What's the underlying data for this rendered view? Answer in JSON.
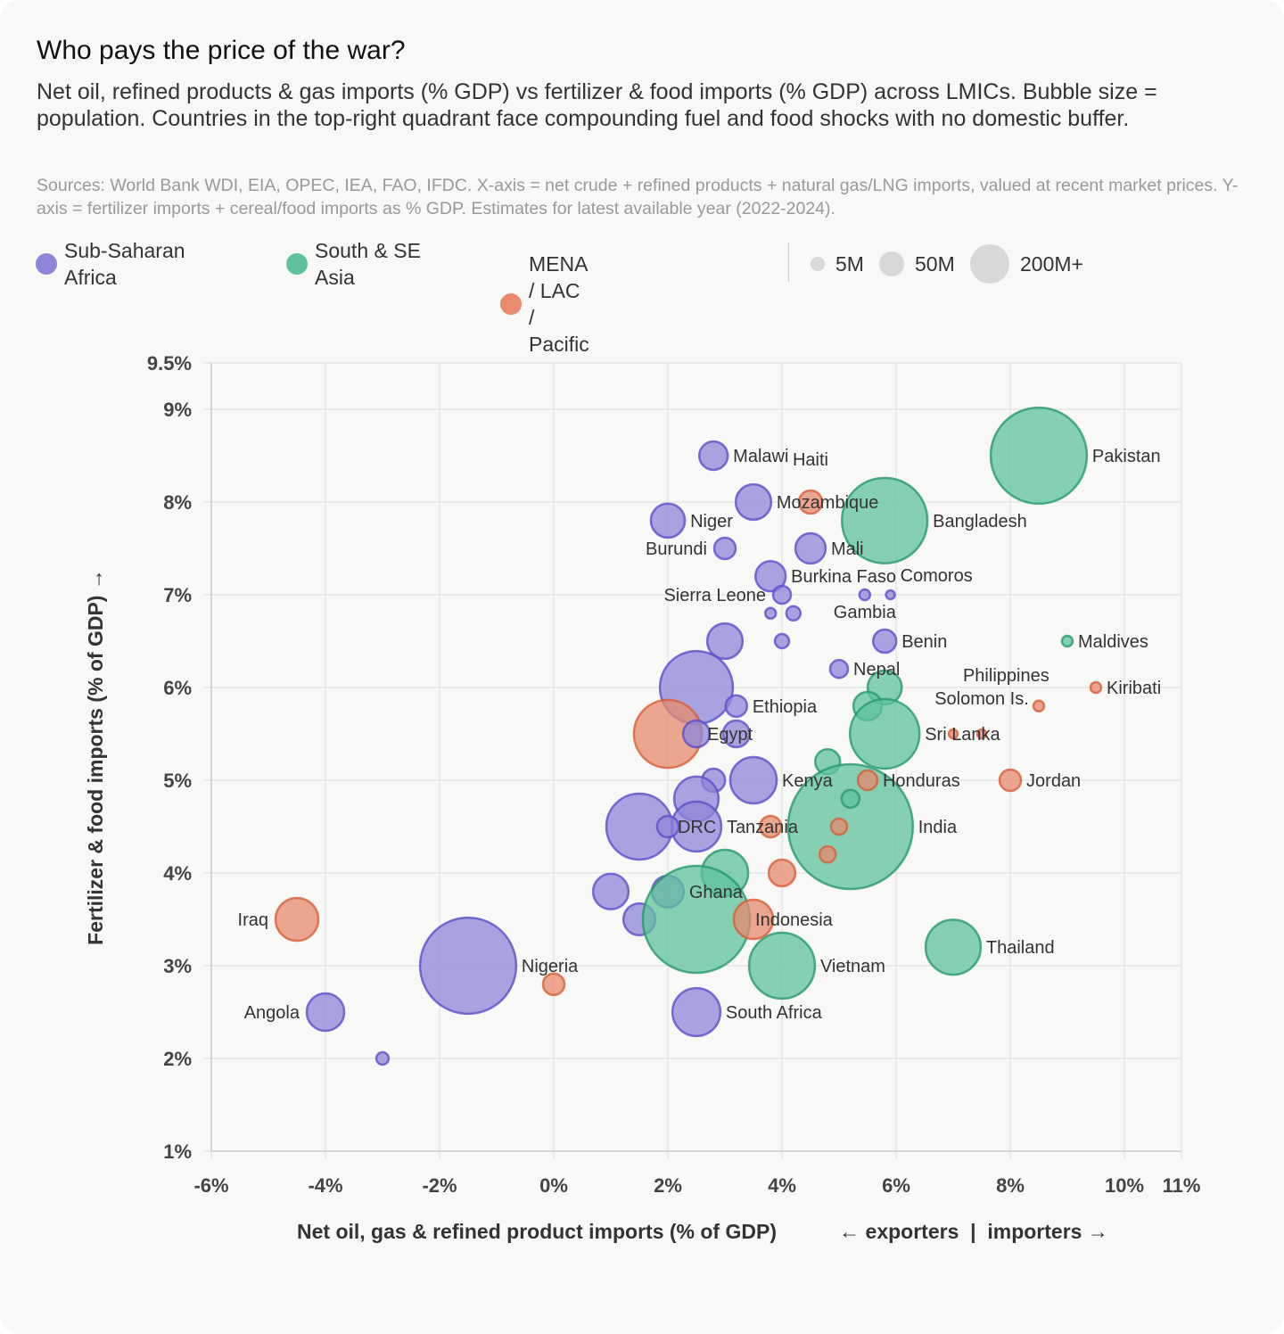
{
  "header": {
    "title": "Who pays the price of the war?",
    "subtitle": "Net oil, refined products & gas imports (% GDP) vs fertilizer & food imports (% GDP) across LMICs. Bubble size = population. Countries in the top-right quadrant face compounding fuel and food shocks with no domestic buffer.",
    "sources": "Sources: World Bank WDI, EIA, OPEC, IEA, FAO, IFDC. X-axis = net crude + refined products + natural gas/LNG imports, valued at recent market prices. Y-axis = fertilizer imports + cereal/food imports as % GDP. Estimates for latest available year (2022-2024)."
  },
  "legend": {
    "regions": [
      {
        "label": "Sub-Saharan Africa",
        "key": "ssa"
      },
      {
        "label": "South & SE Asia",
        "key": "asia"
      },
      {
        "label": "MENA / LAC / Pacific",
        "key": "mena"
      }
    ],
    "sizes": [
      {
        "label": "5M",
        "pop_m": 5
      },
      {
        "label": "50M",
        "pop_m": 50
      },
      {
        "label": "200M+",
        "pop_m": 200
      }
    ]
  },
  "colors": {
    "ssa": {
      "fill": "#8d86d8",
      "stroke": "#5a4fc8"
    },
    "asia": {
      "fill": "#5fc29b",
      "stroke": "#27996a"
    },
    "mena": {
      "fill": "#e88a6c",
      "stroke": "#d65f3a"
    },
    "grid": "#e6e6e6"
  },
  "chart_data": {
    "type": "scatter",
    "title": "Who pays the price of the war?",
    "xlabel": "Net oil, gas & refined product imports (% of GDP)",
    "xlabel_note": "← exporters  |  importers →",
    "ylabel": "Fertilizer & food imports (% of GDP) →",
    "xlim": [
      -6,
      11
    ],
    "ylim": [
      1,
      9.5
    ],
    "x_ticks": [
      -6,
      -4,
      -2,
      0,
      2,
      4,
      6,
      8,
      10,
      11
    ],
    "x_tick_labels": [
      "-6%",
      "-4%",
      "-2%",
      "0%",
      "2%",
      "4%",
      "6%",
      "8%",
      "10%",
      "11%"
    ],
    "y_ticks": [
      1,
      2,
      3,
      4,
      5,
      6,
      7,
      8,
      9,
      9.5
    ],
    "y_tick_labels": [
      "1%",
      "2%",
      "3%",
      "4%",
      "5%",
      "6%",
      "7%",
      "8%",
      "9%",
      "9.5%"
    ],
    "grid": true,
    "points": [
      {
        "name": "Malawi",
        "region": "ssa",
        "x": 2.8,
        "y": 8.5,
        "pop_m": 13
      },
      {
        "name": "Mozambique",
        "region": "ssa",
        "x": 3.5,
        "y": 8.0,
        "pop_m": 22
      },
      {
        "name": "Niger",
        "region": "ssa",
        "x": 2.0,
        "y": 7.8,
        "pop_m": 20
      },
      {
        "name": "Burundi",
        "region": "ssa",
        "x": 3.0,
        "y": 7.5,
        "pop_m": 6.3,
        "label_side": "left"
      },
      {
        "name": "Mali",
        "region": "ssa",
        "x": 4.5,
        "y": 7.5,
        "pop_m": 15
      },
      {
        "name": "Burkina Faso",
        "region": "ssa",
        "x": 3.8,
        "y": 7.2,
        "pop_m": 15
      },
      {
        "name": "Sierra Leone",
        "region": "ssa",
        "x": 4.0,
        "y": 7.0,
        "pop_m": 3.8
      },
      {
        "name": "Gambia",
        "region": "ssa",
        "x": 5.45,
        "y": 7.0,
        "pop_m": 0.7
      },
      {
        "name": "Comoros",
        "region": "ssa",
        "x": 5.9,
        "y": 7.0,
        "pop_m": 0.3
      },
      {
        "name": "",
        "region": "ssa",
        "x": 3.8,
        "y": 6.8,
        "pop_m": 0.7
      },
      {
        "name": "",
        "region": "ssa",
        "x": 4.2,
        "y": 6.8,
        "pop_m": 1.9
      },
      {
        "name": "",
        "region": "ssa",
        "x": 4.0,
        "y": 6.5,
        "pop_m": 1.9
      },
      {
        "name": "",
        "region": "ssa",
        "x": 3.0,
        "y": 6.5,
        "pop_m": 22
      },
      {
        "name": "Benin",
        "region": "ssa",
        "x": 5.8,
        "y": 6.5,
        "pop_m": 7.7
      },
      {
        "name": "Nepal",
        "region": "ssa",
        "x": 5.0,
        "y": 6.2,
        "pop_m": 3.8
      },
      {
        "name": "",
        "region": "ssa",
        "x": 2.5,
        "y": 6.0,
        "pop_m": 111
      },
      {
        "name": "Ethiopia",
        "region": "ssa",
        "x": 3.2,
        "y": 5.8,
        "pop_m": 6.3
      },
      {
        "name": "Egypt",
        "region": "mena",
        "x": 2.0,
        "y": 5.5,
        "pop_m": 95
      },
      {
        "name": "",
        "region": "ssa",
        "x": 2.5,
        "y": 5.5,
        "pop_m": 11
      },
      {
        "name": "",
        "region": "ssa",
        "x": 3.2,
        "y": 5.5,
        "pop_m": 11
      },
      {
        "name": "",
        "region": "ssa",
        "x": 2.8,
        "y": 5.0,
        "pop_m": 7.7
      },
      {
        "name": "Kenya",
        "region": "ssa",
        "x": 3.5,
        "y": 5.0,
        "pop_m": 41
      },
      {
        "name": "",
        "region": "ssa",
        "x": 2.5,
        "y": 4.8,
        "pop_m": 37
      },
      {
        "name": "Tanzania",
        "region": "ssa",
        "x": 2.5,
        "y": 4.5,
        "pop_m": 48
      },
      {
        "name": "DRC",
        "region": "ssa",
        "x": 1.5,
        "y": 4.5,
        "pop_m": 89
      },
      {
        "name": "",
        "region": "ssa",
        "x": 2.0,
        "y": 4.5,
        "pop_m": 6.3
      },
      {
        "name": "Ghana",
        "region": "ssa",
        "x": 2.0,
        "y": 3.8,
        "pop_m": 17
      },
      {
        "name": "",
        "region": "ssa",
        "x": 1.0,
        "y": 3.8,
        "pop_m": 22
      },
      {
        "name": "",
        "region": "ssa",
        "x": 1.5,
        "y": 3.5,
        "pop_m": 17
      },
      {
        "name": "Nigeria",
        "region": "ssa",
        "x": -1.5,
        "y": 3.0,
        "pop_m": 200
      },
      {
        "name": "Angola",
        "region": "ssa",
        "x": -4.0,
        "y": 2.5,
        "pop_m": 25,
        "label_side": "left"
      },
      {
        "name": "",
        "region": "ssa",
        "x": -3.0,
        "y": 2.0,
        "pop_m": 1.2
      },
      {
        "name": "South Africa",
        "region": "ssa",
        "x": 2.5,
        "y": 2.5,
        "pop_m": 44
      },
      {
        "name": "Pakistan",
        "region": "asia",
        "x": 8.5,
        "y": 8.5,
        "pop_m": 200
      },
      {
        "name": "Bangladesh",
        "region": "asia",
        "x": 5.8,
        "y": 7.8,
        "pop_m": 156
      },
      {
        "name": "Maldives",
        "region": "asia",
        "x": 9.0,
        "y": 6.5,
        "pop_m": 0.7
      },
      {
        "name": "",
        "region": "asia",
        "x": 5.8,
        "y": 6.0,
        "pop_m": 20
      },
      {
        "name": "",
        "region": "asia",
        "x": 5.5,
        "y": 5.8,
        "pop_m": 13
      },
      {
        "name": "Sri Lanka",
        "region": "asia",
        "x": 5.8,
        "y": 5.5,
        "pop_m": 100
      },
      {
        "name": "",
        "region": "asia",
        "x": 4.8,
        "y": 5.2,
        "pop_m": 9.3
      },
      {
        "name": "India",
        "region": "asia",
        "x": 5.2,
        "y": 4.5,
        "pop_m": 346
      },
      {
        "name": "",
        "region": "asia",
        "x": 5.2,
        "y": 4.8,
        "pop_m": 3.8
      },
      {
        "name": "",
        "region": "asia",
        "x": 3.0,
        "y": 4.0,
        "pop_m": 41
      },
      {
        "name": "Indonesia",
        "region": "asia",
        "x": 2.5,
        "y": 3.5,
        "pop_m": 251
      },
      {
        "name": "Vietnam",
        "region": "asia",
        "x": 4.0,
        "y": 3.0,
        "pop_m": 89
      },
      {
        "name": "Thailand",
        "region": "asia",
        "x": 7.0,
        "y": 3.2,
        "pop_m": 60
      },
      {
        "name": "Haiti",
        "region": "mena",
        "x": 4.5,
        "y": 8.0,
        "pop_m": 7.7
      },
      {
        "name": "",
        "region": "mena",
        "x": 3.8,
        "y": 4.5,
        "pop_m": 6.3
      },
      {
        "name": "",
        "region": "mena",
        "x": 4.0,
        "y": 4.0,
        "pop_m": 11
      },
      {
        "name": "",
        "region": "mena",
        "x": 3.5,
        "y": 3.5,
        "pop_m": 28
      },
      {
        "name": "Iraq",
        "region": "mena",
        "x": -4.5,
        "y": 3.5,
        "pop_m": 34,
        "label_side": "left"
      },
      {
        "name": "",
        "region": "mena",
        "x": 0.0,
        "y": 2.8,
        "pop_m": 6.3
      },
      {
        "name": "Honduras",
        "region": "mena",
        "x": 5.5,
        "y": 5.0,
        "pop_m": 4.9
      },
      {
        "name": "",
        "region": "mena",
        "x": 5.0,
        "y": 4.5,
        "pop_m": 2.8
      },
      {
        "name": "",
        "region": "mena",
        "x": 4.8,
        "y": 4.2,
        "pop_m": 2.8
      },
      {
        "name": "Jordan",
        "region": "mena",
        "x": 8.0,
        "y": 5.0,
        "pop_m": 6.3
      },
      {
        "name": "Kiribati",
        "region": "mena",
        "x": 9.5,
        "y": 6.0,
        "pop_m": 0.7
      },
      {
        "name": "",
        "region": "mena",
        "x": 8.5,
        "y": 5.8,
        "pop_m": 0.7
      },
      {
        "name": "Solomon Is.",
        "region": "mena",
        "x": 7.5,
        "y": 5.5,
        "pop_m": 0.3
      },
      {
        "name": "Philippines",
        "region": "mena",
        "x": 7.0,
        "y": 5.5,
        "pop_m": 0.3
      }
    ]
  }
}
